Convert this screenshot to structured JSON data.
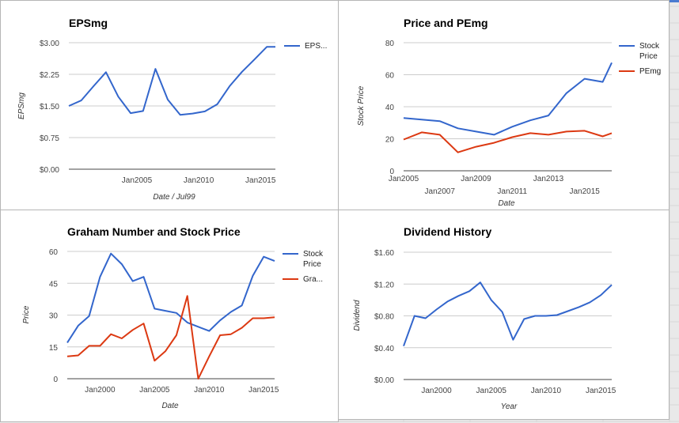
{
  "chart_data": [
    {
      "type": "line",
      "title": "EPSmg",
      "xlabel": "Date / Jul99",
      "ylabel": "EPSmg",
      "ylim": [
        0,
        3
      ],
      "xlim": [
        1999.5,
        2016.2
      ],
      "yticks": [
        0,
        0.75,
        1.5,
        2.25,
        3
      ],
      "ytick_labels": [
        "$0.00",
        "$0.75",
        "$1.50",
        "$2.25",
        "$3.00"
      ],
      "xticks": [
        2005,
        2010,
        2015
      ],
      "xtick_labels": [
        "Jan2005",
        "Jan2010",
        "Jan2015"
      ],
      "legend_position": "right",
      "series": [
        {
          "name": "EPS...",
          "color": "#3366cc",
          "x": [
            1999.5,
            2000.5,
            2001.5,
            2002.5,
            2003.5,
            2004.5,
            2005.5,
            2006.5,
            2007.5,
            2008.5,
            2009.5,
            2010.5,
            2011.5,
            2012.5,
            2013.5,
            2014.5,
            2015.5,
            2016.2
          ],
          "y": [
            1.5,
            1.63,
            1.97,
            2.3,
            1.72,
            1.33,
            1.38,
            2.38,
            1.65,
            1.29,
            1.32,
            1.37,
            1.54,
            1.97,
            2.31,
            2.6,
            2.9,
            2.9
          ]
        }
      ]
    },
    {
      "type": "line",
      "title": "Price and PEmg",
      "xlabel": "Date",
      "ylabel": "Stock Price",
      "ylim": [
        0,
        80
      ],
      "xlim": [
        2005,
        2016.5
      ],
      "yticks": [
        0,
        20,
        40,
        60,
        80
      ],
      "ytick_labels": [
        "0",
        "20",
        "40",
        "60",
        "80"
      ],
      "xticks": [
        2005,
        2007,
        2009,
        2011,
        2013,
        2015
      ],
      "xtick_labels": [
        "Jan2005",
        "Jan2007",
        "Jan2009",
        "Jan2011",
        "Jan2013",
        "Jan2015"
      ],
      "legend_position": "right",
      "series": [
        {
          "name": "Stock Price",
          "color": "#3366cc",
          "x": [
            2005,
            2006,
            2007,
            2008,
            2009,
            2010,
            2011,
            2012,
            2013,
            2014,
            2015,
            2016,
            2016.5
          ],
          "y": [
            33,
            32,
            31,
            26.5,
            24.5,
            22.5,
            27.5,
            31.5,
            34.5,
            48.5,
            57.5,
            55.5,
            67.5
          ]
        },
        {
          "name": "PEmg",
          "color": "#dc3912",
          "x": [
            2005,
            2006,
            2007,
            2008,
            2009,
            2010,
            2011,
            2012,
            2013,
            2014,
            2015,
            2016,
            2016.5
          ],
          "y": [
            19.5,
            24,
            22.5,
            11.5,
            15,
            17.5,
            21,
            23.5,
            22.5,
            24.5,
            25,
            21.5,
            23.5
          ]
        }
      ]
    },
    {
      "type": "line",
      "title": "Graham Number and Stock Price",
      "xlabel": "Date",
      "ylabel": "Price",
      "ylim": [
        0,
        60
      ],
      "xlim": [
        1997,
        2016
      ],
      "yticks": [
        0,
        15,
        30,
        45,
        60
      ],
      "ytick_labels": [
        "0",
        "15",
        "30",
        "45",
        "60"
      ],
      "xticks": [
        2000,
        2005,
        2010,
        2015
      ],
      "xtick_labels": [
        "Jan2000",
        "Jan2005",
        "Jan2010",
        "Jan2015"
      ],
      "legend_position": "right",
      "series": [
        {
          "name": "Stock Price",
          "color": "#3366cc",
          "x": [
            1997,
            1998,
            1999,
            2000,
            2001,
            2002,
            2003,
            2004,
            2005,
            2006,
            2007,
            2008,
            2009,
            2010,
            2011,
            2012,
            2013,
            2014,
            2015,
            2016
          ],
          "y": [
            17,
            25,
            29.5,
            48,
            59,
            54,
            46,
            48,
            33,
            32,
            31,
            26.5,
            24.5,
            22.5,
            27.5,
            31.5,
            34.5,
            48.5,
            57.5,
            55.5
          ]
        },
        {
          "name": "Gra...",
          "color": "#dc3912",
          "x": [
            1997,
            1998,
            1999,
            2000,
            2001,
            2002,
            2003,
            2004,
            2005,
            2006,
            2007,
            2008,
            2009,
            2010,
            2011,
            2012,
            2013,
            2014,
            2015,
            2016
          ],
          "y": [
            10.5,
            11,
            15.5,
            15.5,
            21,
            19,
            23,
            26,
            8.5,
            13,
            20.5,
            39,
            0,
            10.5,
            20.5,
            21,
            24,
            28.5,
            28.5,
            29
          ]
        }
      ]
    },
    {
      "type": "line",
      "title": "Dividend History",
      "xlabel": "Year",
      "ylabel": "Dividend",
      "ylim": [
        0,
        1.6
      ],
      "xlim": [
        1997,
        2016
      ],
      "yticks": [
        0,
        0.4,
        0.8,
        1.2,
        1.6
      ],
      "ytick_labels": [
        "$0.00",
        "$0.40",
        "$0.80",
        "$1.20",
        "$1.60"
      ],
      "xticks": [
        2000,
        2005,
        2010,
        2015
      ],
      "xtick_labels": [
        "Jan2000",
        "Jan2005",
        "Jan2010",
        "Jan2015"
      ],
      "legend_position": "none",
      "series": [
        {
          "name": "",
          "color": "#3366cc",
          "x": [
            1997,
            1998,
            1999,
            2000,
            2001,
            2002,
            2003,
            2004,
            2005,
            2006,
            2007,
            2008,
            2009,
            2010,
            2011,
            2012,
            2013,
            2014,
            2015,
            2016
          ],
          "y": [
            0.42,
            0.8,
            0.77,
            0.88,
            0.98,
            1.05,
            1.11,
            1.22,
            1.0,
            0.85,
            0.5,
            0.76,
            0.8,
            0.8,
            0.81,
            0.86,
            0.91,
            0.97,
            1.06,
            1.19
          ]
        }
      ]
    }
  ]
}
